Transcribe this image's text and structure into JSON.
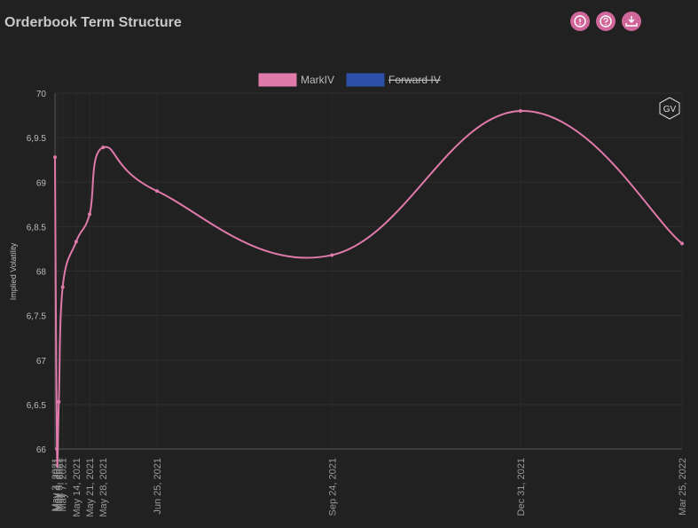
{
  "header": {
    "title": "Orderbook Term Structure"
  },
  "badge": "GV",
  "chart_data": {
    "type": "line",
    "ylabel": "Implied Volatility",
    "x": [
      "May 3, 2021",
      "May 4, 2021",
      "May 5, 2021",
      "May 7, 2021",
      "May 14, 2021",
      "May 21, 2021",
      "May 28, 2021",
      "Jun 25, 2021",
      "Sep 24, 2021",
      "Dec 31, 2021",
      "Mar 25, 2022"
    ],
    "xlim": [
      "May 3, 2021",
      "Mar 25, 2022"
    ],
    "series": [
      {
        "name": "MarkIV",
        "color": "#e07aab",
        "values": [
          69.28,
          66.0,
          66.53,
          67.82,
          68.33,
          68.64,
          69.39,
          68.9,
          68.18,
          69.8,
          68.31
        ]
      },
      {
        "name": "Forward IV",
        "color": "#2c50a8",
        "hidden": true,
        "values": [
          null,
          null,
          null,
          null,
          null,
          null,
          null,
          null,
          null,
          null,
          null
        ]
      }
    ],
    "ylim": [
      66,
      70
    ],
    "yticks": [
      66,
      {
        "value": 66.5,
        "label": "6,6.5"
      },
      67,
      {
        "value": 67.5,
        "label": "6,7.5"
      },
      68,
      {
        "value": 68.5,
        "label": "6,8.5"
      },
      69,
      {
        "value": 69.5,
        "label": "6,9.5"
      },
      70
    ],
    "grid": true
  }
}
